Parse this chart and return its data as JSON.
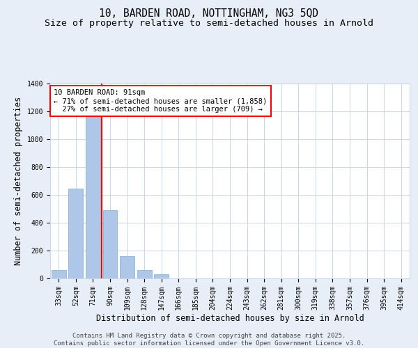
{
  "title_line1": "10, BARDEN ROAD, NOTTINGHAM, NG3 5QD",
  "title_line2": "Size of property relative to semi-detached houses in Arnold",
  "xlabel": "Distribution of semi-detached houses by size in Arnold",
  "ylabel": "Number of semi-detached properties",
  "categories": [
    "33sqm",
    "52sqm",
    "71sqm",
    "90sqm",
    "109sqm",
    "128sqm",
    "147sqm",
    "166sqm",
    "185sqm",
    "204sqm",
    "224sqm",
    "243sqm",
    "262sqm",
    "281sqm",
    "300sqm",
    "319sqm",
    "338sqm",
    "357sqm",
    "376sqm",
    "395sqm",
    "414sqm"
  ],
  "values": [
    60,
    645,
    1270,
    490,
    160,
    60,
    30,
    0,
    0,
    0,
    0,
    0,
    0,
    0,
    0,
    0,
    0,
    0,
    0,
    0,
    0
  ],
  "bar_color": "#aec6e8",
  "bar_edge_color": "#7aafd4",
  "annotation_text": "10 BARDEN ROAD: 91sqm\n← 71% of semi-detached houses are smaller (1,858)\n  27% of semi-detached houses are larger (709) →",
  "annotation_box_color": "white",
  "annotation_box_edge_color": "red",
  "property_line_color": "red",
  "ylim": [
    0,
    1400
  ],
  "yticks": [
    0,
    200,
    400,
    600,
    800,
    1000,
    1200,
    1400
  ],
  "background_color": "#e8eef7",
  "plot_background_color": "white",
  "grid_color": "#c8d4e8",
  "footer_line1": "Contains HM Land Registry data © Crown copyright and database right 2025.",
  "footer_line2": "Contains public sector information licensed under the Open Government Licence v3.0.",
  "title_fontsize": 10.5,
  "subtitle_fontsize": 9.5,
  "axis_label_fontsize": 8.5,
  "tick_fontsize": 7,
  "footer_fontsize": 6.5,
  "annotation_fontsize": 7.5
}
